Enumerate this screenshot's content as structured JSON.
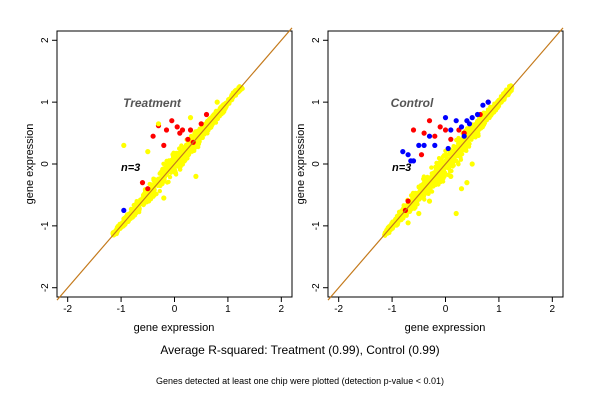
{
  "captions": {
    "main": "Average R-squared: Treatment (0.99), Control (0.99)",
    "note": "Genes detected at least one chip were plotted (detection p-value < 0.01)"
  },
  "chart_data": [
    {
      "type": "scatter",
      "title": "Treatment",
      "n_label": "n=3",
      "xlabel": "gene expression",
      "ylabel": "gene expression",
      "xlim": [
        -2.2,
        2.2
      ],
      "ylim": [
        -2.15,
        2.15
      ],
      "xticks": [
        -2,
        -1,
        0,
        1,
        2
      ],
      "yticks": [
        -2,
        -1,
        0,
        1,
        2
      ],
      "identity_line": {
        "color": "#c47a1c",
        "slope": 1,
        "intercept": 0
      },
      "main_cloud": {
        "color": "#ffff00",
        "x_range": [
          -1.15,
          1.25
        ],
        "spread": 0.12
      },
      "series": [
        {
          "name": "",
          "color": "#ff0000",
          "x": [
            -0.4,
            -0.3,
            -0.15,
            -0.05,
            0.05,
            0.15,
            0.25,
            0.35,
            -0.6,
            -0.5,
            0.5,
            0.6,
            -0.2,
            0.1,
            0.3
          ],
          "y": [
            0.45,
            0.62,
            0.55,
            0.7,
            0.6,
            0.55,
            0.4,
            0.35,
            -0.3,
            -0.4,
            0.65,
            0.8,
            0.3,
            0.5,
            0.55
          ]
        },
        {
          "name": "",
          "color": "#0000ff",
          "x": [
            -0.95
          ],
          "y": [
            -0.75
          ]
        },
        {
          "name": "",
          "color": "#ffff00",
          "x": [
            -0.95,
            -0.5,
            -0.3,
            0.3,
            0.8,
            1.1,
            -0.2,
            0.4
          ],
          "y": [
            0.3,
            0.2,
            0.65,
            0.75,
            1.0,
            1.15,
            -0.55,
            -0.2
          ]
        }
      ]
    },
    {
      "type": "scatter",
      "title": "Control",
      "n_label": "n=3",
      "xlabel": "gene expression",
      "ylabel": "gene expression",
      "xlim": [
        -2.2,
        2.2
      ],
      "ylim": [
        -2.15,
        2.15
      ],
      "xticks": [
        -2,
        -1,
        0,
        1,
        2
      ],
      "yticks": [
        -2,
        -1,
        0,
        1,
        2
      ],
      "identity_line": {
        "color": "#c47a1c",
        "slope": 1,
        "intercept": 0
      },
      "main_cloud": {
        "color": "#ffff00",
        "x_range": [
          -1.15,
          1.25
        ],
        "spread": 0.14
      },
      "series": [
        {
          "name": "",
          "color": "#ff0000",
          "x": [
            -0.6,
            -0.4,
            -0.2,
            -0.3,
            0.0,
            0.1,
            -0.7,
            -0.75,
            0.8,
            0.65,
            -0.1,
            0.25,
            -0.45,
            0.35
          ],
          "y": [
            0.55,
            0.5,
            0.45,
            0.7,
            0.55,
            0.4,
            -0.6,
            -0.75,
            1.0,
            0.8,
            0.6,
            0.55,
            0.15,
            0.5
          ]
        },
        {
          "name": "",
          "color": "#0000ff",
          "x": [
            -0.8,
            -0.7,
            -0.6,
            -0.5,
            -0.3,
            -0.2,
            0.0,
            0.1,
            0.2,
            0.3,
            0.35,
            0.4,
            0.5,
            0.6,
            0.7,
            0.8,
            -0.4,
            0.45,
            0.05,
            -0.65
          ],
          "y": [
            0.2,
            0.15,
            0.05,
            0.3,
            0.45,
            0.3,
            0.75,
            0.55,
            0.7,
            0.6,
            0.45,
            0.7,
            0.75,
            0.8,
            0.95,
            1.0,
            0.3,
            0.65,
            0.25,
            0.05
          ]
        },
        {
          "name": "",
          "color": "#ffff00",
          "x": [
            -0.7,
            -0.5,
            -0.3,
            0.1,
            0.3,
            0.4,
            0.5,
            0.2,
            -0.4
          ],
          "y": [
            -0.95,
            -0.8,
            -0.6,
            -0.2,
            -0.4,
            -0.3,
            0.0,
            -0.8,
            -0.45
          ]
        }
      ]
    }
  ]
}
